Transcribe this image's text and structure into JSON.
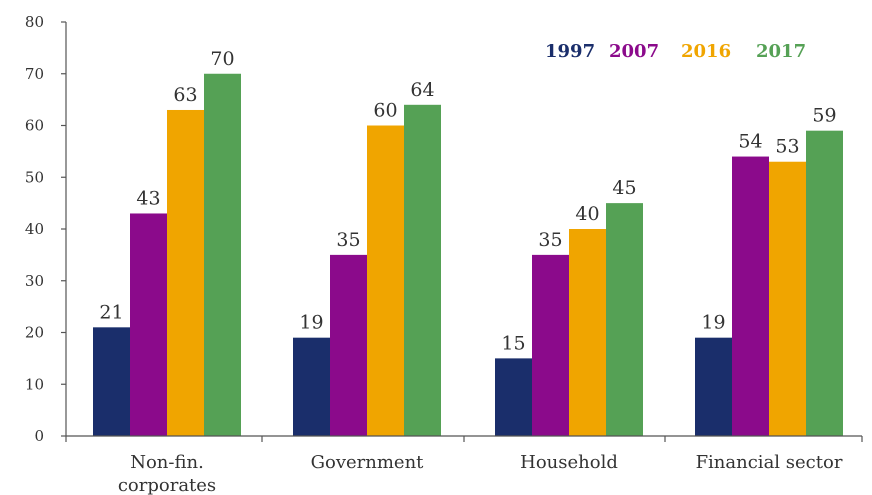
{
  "chart_data": {
    "type": "bar",
    "categories": [
      "Non-fin. corporates",
      "Government",
      "Household",
      "Financial sector"
    ],
    "category_lines": [
      [
        "Non-fin.",
        "corporates"
      ],
      [
        "Government"
      ],
      [
        "Household"
      ],
      [
        "Financial sector"
      ]
    ],
    "series": [
      {
        "name": "1997",
        "color": "#1a2e6b",
        "values": [
          21,
          19,
          15,
          19
        ]
      },
      {
        "name": "2007",
        "color": "#8b0a8b",
        "values": [
          43,
          35,
          35,
          54
        ]
      },
      {
        "name": "2016",
        "color": "#f0a500",
        "values": [
          63,
          60,
          40,
          53
        ]
      },
      {
        "name": "2017",
        "color": "#55a155",
        "values": [
          70,
          64,
          45,
          59
        ]
      }
    ],
    "title": "",
    "xlabel": "",
    "ylabel": "",
    "ylim": [
      0,
      80
    ],
    "yticks": [
      0,
      10,
      20,
      30,
      40,
      50,
      60,
      70,
      80
    ],
    "legend_position": "top-right",
    "grid": false
  }
}
